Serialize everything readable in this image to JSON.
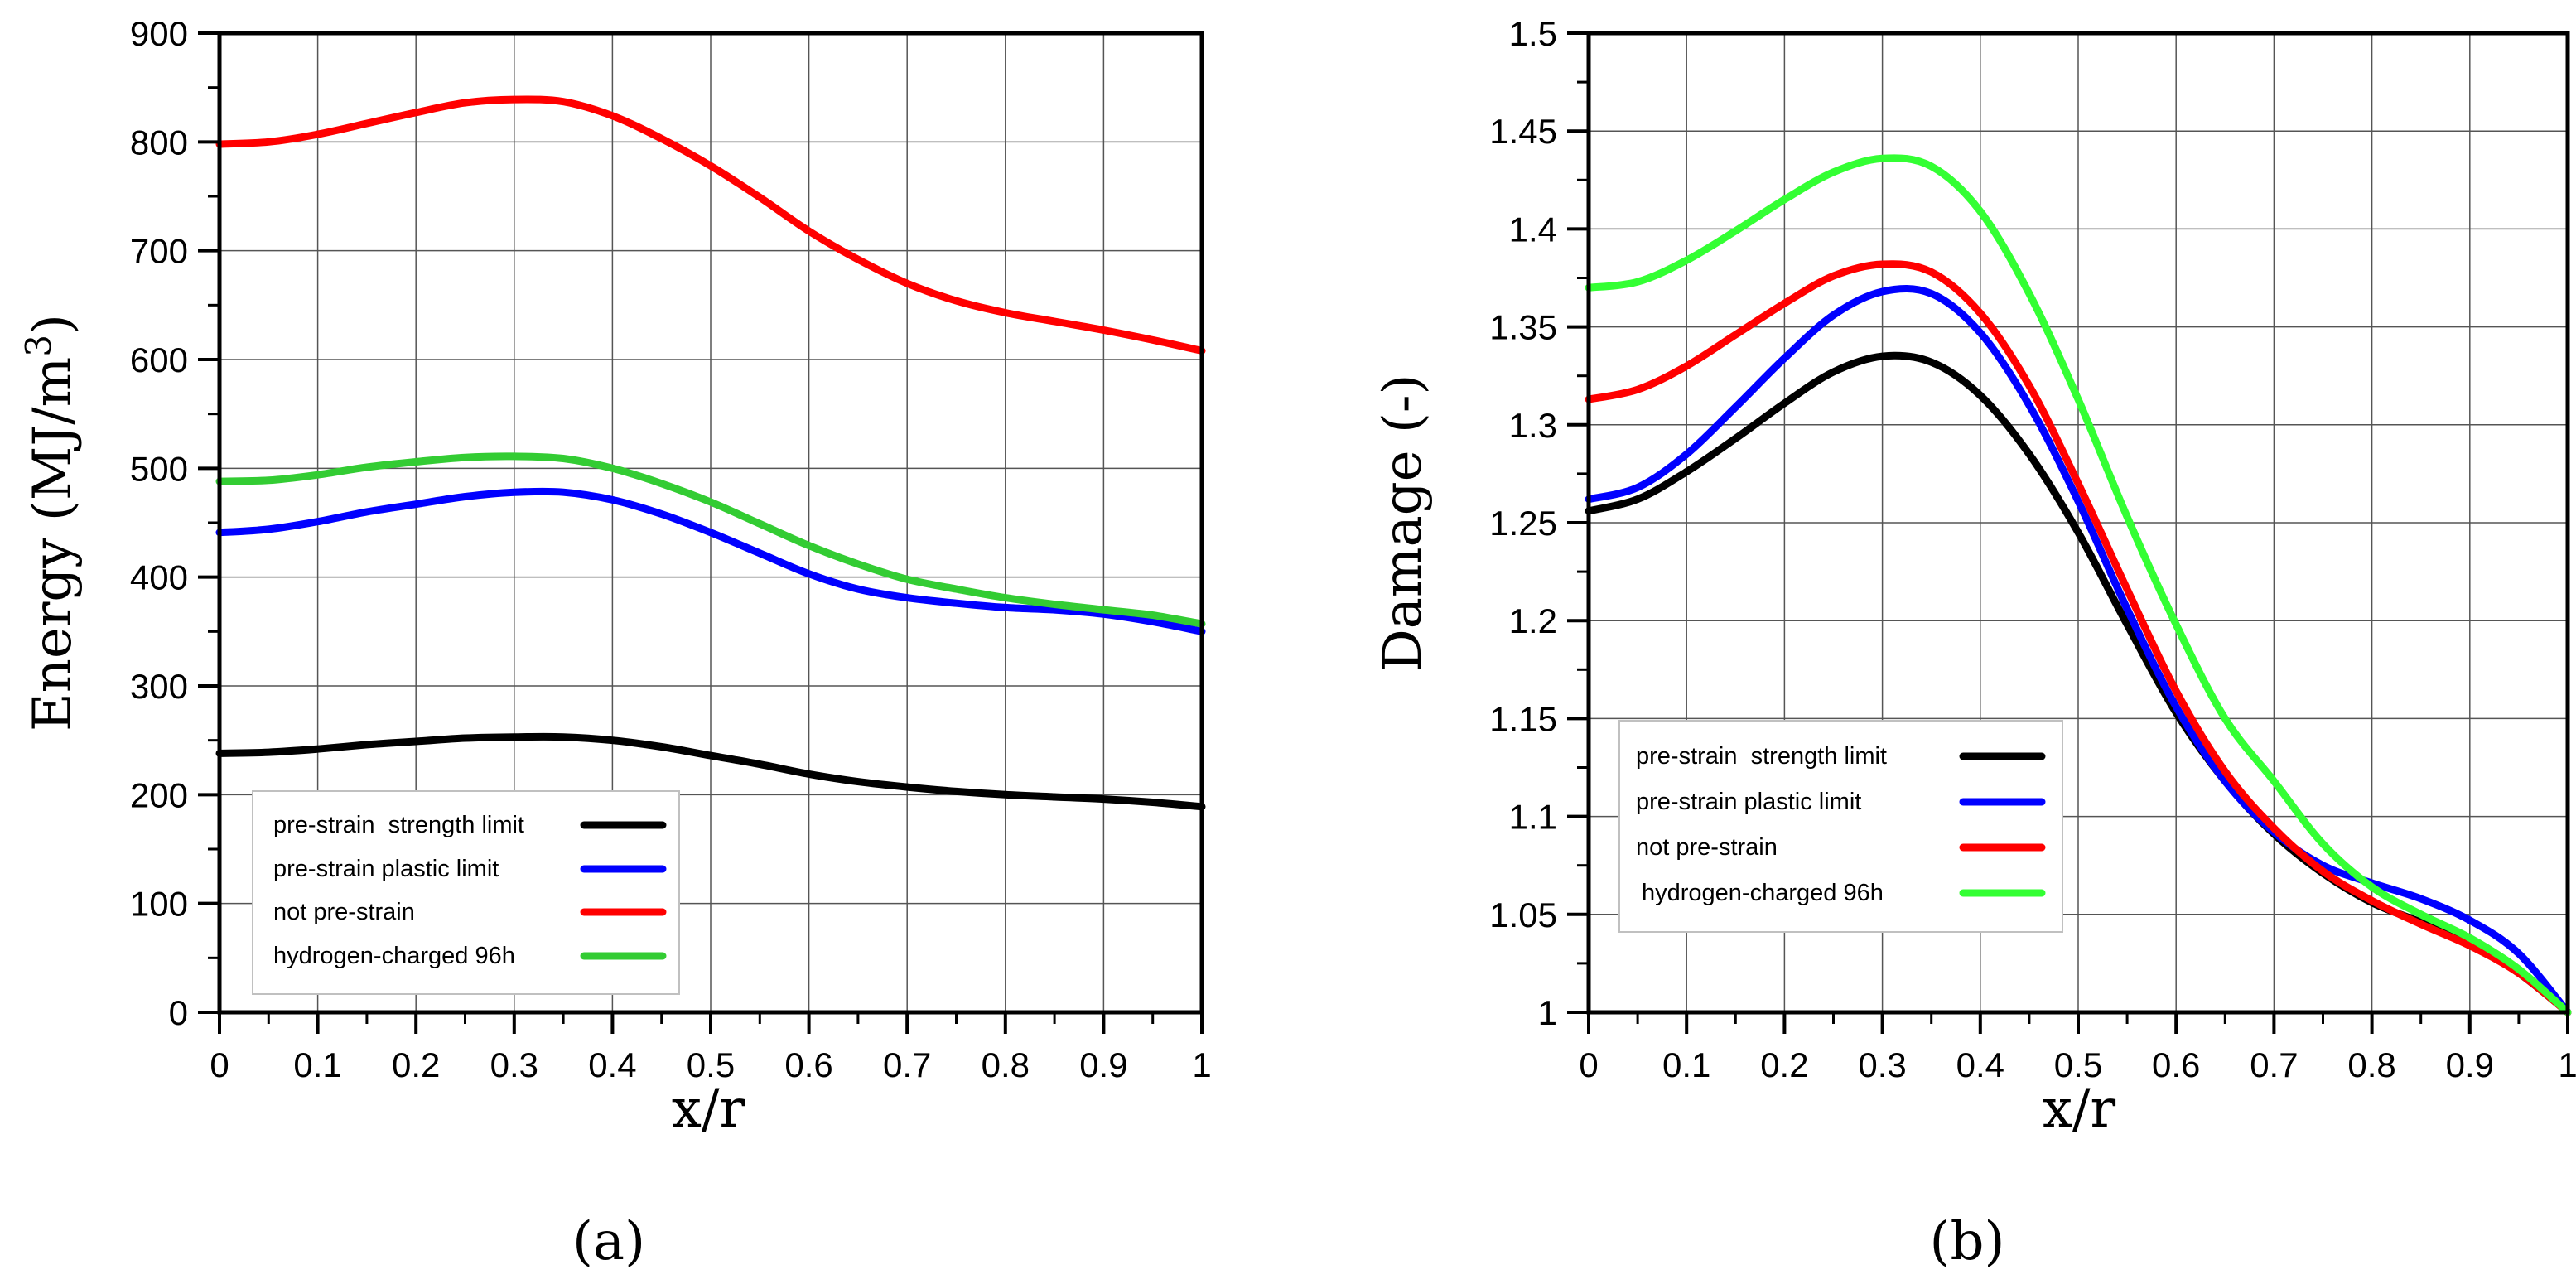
{
  "chart_data": [
    {
      "type": "line",
      "panel": "a",
      "panel_label": "(a)",
      "title": "",
      "xlabel": "x/r",
      "ylabel": "Energy (MJ/m³)",
      "ylabel_main": "Energy (MJ/m",
      "ylabel_sup": "3",
      "ylabel_close": ")",
      "xlim": [
        0,
        1
      ],
      "ylim": [
        0,
        900
      ],
      "xticks": [
        "0",
        "0.1",
        "0.2",
        "0.3",
        "0.4",
        "0.5",
        "0.6",
        "0.7",
        "0.8",
        "0.9",
        "1"
      ],
      "yticks": [
        "0",
        "100",
        "200",
        "300",
        "400",
        "500",
        "600",
        "700",
        "800",
        "900"
      ],
      "grid": true,
      "legend_position": "bottom-left",
      "x": [
        0,
        0.05,
        0.1,
        0.15,
        0.2,
        0.25,
        0.3,
        0.35,
        0.4,
        0.45,
        0.5,
        0.55,
        0.6,
        0.65,
        0.7,
        0.75,
        0.8,
        0.85,
        0.9,
        0.95,
        1.0
      ],
      "series": [
        {
          "name": "pre-strain  strength limit",
          "color": "#000000",
          "values": [
            238,
            239,
            242,
            246,
            249,
            252,
            253,
            253,
            250,
            244,
            236,
            228,
            219,
            212,
            207,
            203,
            200,
            198,
            196,
            193,
            189
          ]
        },
        {
          "name": "pre-strain plastic limit",
          "color": "#0000ff",
          "values": [
            441,
            444,
            451,
            460,
            467,
            474,
            478,
            478,
            471,
            458,
            441,
            422,
            403,
            389,
            381,
            376,
            372,
            370,
            366,
            359,
            350
          ]
        },
        {
          "name": "not pre-strain",
          "color": "#ff0000",
          "values": [
            798,
            800,
            807,
            817,
            827,
            836,
            839,
            837,
            824,
            803,
            778,
            749,
            718,
            692,
            670,
            654,
            643,
            635,
            627,
            618,
            608
          ]
        },
        {
          "name": "hydrogen-charged 96h",
          "color": "#33cc33",
          "values": [
            488,
            489,
            494,
            501,
            506,
            510,
            511,
            509,
            500,
            486,
            469,
            449,
            429,
            412,
            398,
            389,
            381,
            375,
            370,
            365,
            357
          ]
        }
      ]
    },
    {
      "type": "line",
      "panel": "b",
      "panel_label": "(b)",
      "title": "",
      "xlabel": "x/r",
      "ylabel": "Damage (-)",
      "xlim": [
        0,
        1
      ],
      "ylim": [
        1,
        1.5
      ],
      "xticks": [
        "0",
        "0.1",
        "0.2",
        "0.3",
        "0.4",
        "0.5",
        "0.6",
        "0.7",
        "0.8",
        "0.9",
        "1"
      ],
      "yticks": [
        "1",
        "1.05",
        "1.1",
        "1.15",
        "1.2",
        "1.25",
        "1.3",
        "1.35",
        "1.4",
        "1.45",
        "1.5"
      ],
      "grid": true,
      "legend_position": "bottom-left",
      "x": [
        0,
        0.05,
        0.1,
        0.15,
        0.2,
        0.25,
        0.3,
        0.35,
        0.4,
        0.45,
        0.5,
        0.55,
        0.6,
        0.65,
        0.7,
        0.75,
        0.8,
        0.85,
        0.9,
        0.95,
        1.0
      ],
      "series": [
        {
          "name": "pre-strain  strength limit",
          "color": "#000000",
          "values": [
            1.256,
            1.262,
            1.276,
            1.293,
            1.311,
            1.327,
            1.335,
            1.332,
            1.315,
            1.285,
            1.245,
            1.198,
            1.153,
            1.118,
            1.091,
            1.071,
            1.056,
            1.046,
            1.035,
            1.02,
            1.0
          ]
        },
        {
          "name": "pre-strain plastic limit",
          "color": "#0000ff",
          "values": [
            1.262,
            1.268,
            1.285,
            1.309,
            1.334,
            1.356,
            1.368,
            1.367,
            1.347,
            1.31,
            1.261,
            1.206,
            1.156,
            1.118,
            1.092,
            1.075,
            1.066,
            1.058,
            1.047,
            1.03,
            1.0
          ]
        },
        {
          "name": "not pre-strain",
          "color": "#ff0000",
          "values": [
            1.313,
            1.318,
            1.33,
            1.346,
            1.362,
            1.376,
            1.382,
            1.378,
            1.357,
            1.32,
            1.27,
            1.216,
            1.164,
            1.123,
            1.094,
            1.072,
            1.057,
            1.045,
            1.034,
            1.02,
            1.0
          ]
        },
        {
          "name": "hydrogen-charged 96h",
          "color": "#33ff33",
          "values": [
            1.37,
            1.373,
            1.384,
            1.399,
            1.415,
            1.429,
            1.436,
            1.432,
            1.409,
            1.367,
            1.313,
            1.253,
            1.198,
            1.15,
            1.118,
            1.086,
            1.064,
            1.05,
            1.038,
            1.022,
            1.0
          ]
        }
      ]
    }
  ]
}
